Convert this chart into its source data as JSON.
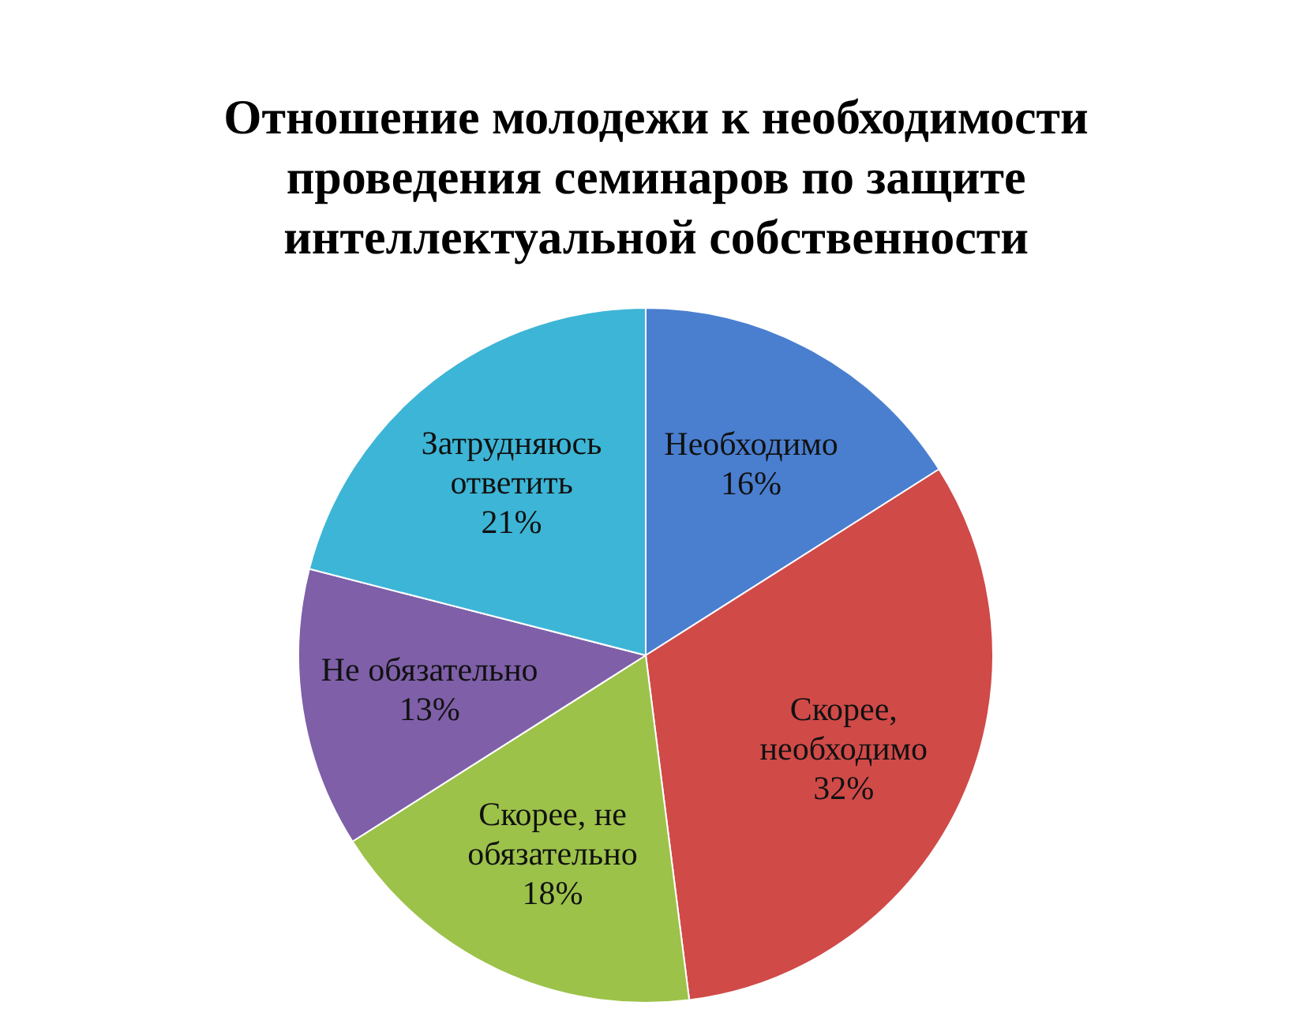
{
  "chart_data": {
    "type": "pie",
    "title": "Отношение молодежи к необходимости проведения семинаров по защите интеллектуальной собственности",
    "categories": [
      "Необходимо",
      "Скорее, необходимо",
      "Скорее, не обязательно",
      "Не обязательно",
      "Затрудняюсь ответить"
    ],
    "values": [
      16,
      32,
      18,
      13,
      21
    ],
    "value_labels": [
      "16%",
      "32%",
      "18%",
      "13%",
      "21%"
    ],
    "colors": [
      "#4a7fd0",
      "#d04a48",
      "#9cc24a",
      "#7e5fa8",
      "#3db5d6"
    ]
  }
}
